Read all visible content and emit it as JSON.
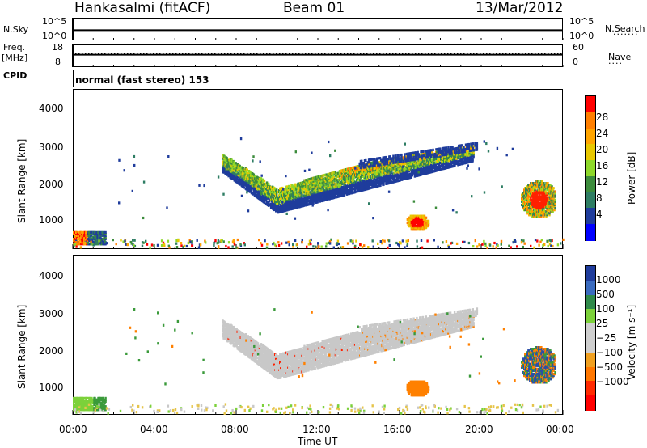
{
  "header": {
    "station": "Hankasalmi (fitACF)",
    "beam": "Beam 01",
    "date": "13/Mar/2012"
  },
  "top_panels": {
    "nsky_label": "N.Sky",
    "nsky_ticks": [
      "10^5",
      "10^0"
    ],
    "nsearch_label": "N.Search",
    "nsearch_ticks": [
      "10^5",
      "10^0"
    ],
    "freq_label_line1": "Freq.",
    "freq_label_line2": "[MHz]",
    "freq_ticks": [
      "18",
      "8"
    ],
    "nave_label": "Nave",
    "nave_ticks": [
      "60",
      "0"
    ],
    "cpid_label": "CPID",
    "cpid_value": "normal (fast stereo) 153"
  },
  "x_axis": {
    "label": "Time UT",
    "ticks": [
      "00:00",
      "04:00",
      "08:00",
      "12:00",
      "16:00",
      "20:00",
      "00:00"
    ]
  },
  "chart_data": [
    {
      "type": "heatmap",
      "name": "power",
      "ylabel": "Slant Range [km]",
      "yticks": [
        "4000",
        "3000",
        "2000",
        "1000"
      ],
      "ylim": [
        180,
        4500
      ],
      "xlim_hours": [
        0,
        24
      ],
      "colorbar_label": "Power [dB]",
      "colorbar_ticks": [
        "28",
        "24",
        "20",
        "16",
        "12",
        "8",
        "4"
      ],
      "colorbar_colors": [
        "#ff0000",
        "#ff7f00",
        "#ffa500",
        "#e8c800",
        "#8ed82a",
        "#3c8c3c",
        "#2e7d63",
        "#1f3c9c",
        "#0000ff"
      ],
      "features": [
        {
          "desc": "main echo band",
          "t_start": 7.2,
          "t_end": 19.8,
          "range_low_start": 1250,
          "range_low_end": 2500,
          "dominant": "blue-green"
        },
        {
          "desc": "strong patch",
          "t": 16.8,
          "range": 900,
          "dominant": "red"
        },
        {
          "desc": "late patch",
          "t": 22.8,
          "range": 1500,
          "dominant": "red-orange"
        },
        {
          "desc": "early near-range",
          "t": 0.5,
          "range": 550,
          "dominant": "red-orange"
        }
      ]
    },
    {
      "type": "heatmap",
      "name": "velocity",
      "ylabel": "Slant Range [km]",
      "yticks": [
        "4000",
        "3000",
        "2000",
        "1000"
      ],
      "ylim": [
        180,
        4500
      ],
      "xlim_hours": [
        0,
        24
      ],
      "colorbar_label": "Velocity [m s⁻¹]",
      "colorbar_ticks": [
        "1000",
        "500",
        "100",
        "25",
        "−25",
        "−100",
        "−500",
        "−1000"
      ],
      "colorbar_colors": [
        "#1f3c9c",
        "#3a6bbf",
        "#2f8a4a",
        "#7cd13a",
        "#cfcfcf",
        "#cfcfcf",
        "#f0a020",
        "#ff7700",
        "#ff2a00",
        "#ff0000"
      ],
      "features": [
        {
          "desc": "main echo band",
          "t_start": 7.2,
          "t_end": 19.8,
          "dominant": "grey (low velocity)"
        },
        {
          "desc": "patch",
          "t": 16.8,
          "range": 900,
          "dominant": "orange"
        },
        {
          "desc": "late patch",
          "t": 22.8,
          "range": 1500,
          "dominant": "blue/orange"
        },
        {
          "desc": "early near-range",
          "t": 0.5,
          "range": 550,
          "dominant": "green"
        }
      ]
    }
  ],
  "colors": {
    "blue": "#1f3c9c",
    "green": "#3c8c3c",
    "yellow": "#e8c800",
    "orange": "#ff7f00",
    "red": "#ff0000",
    "grey": "#c8c8c8"
  }
}
